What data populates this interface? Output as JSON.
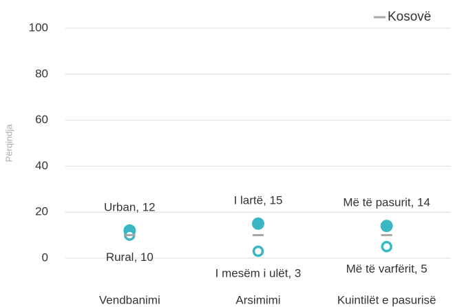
{
  "chart_data": {
    "type": "dot",
    "y_label": "Përqindja",
    "categories": [
      "Vendbanimi",
      "Arsimimi",
      "Kuintilët e pasurisë"
    ],
    "series": [
      {
        "color": "#3bb7c3",
        "marker": "filled",
        "values": [
          12,
          15,
          14
        ],
        "value_labels": [
          "Urban, 12",
          "I lartë, 15",
          "Më të pasurit, 14"
        ]
      },
      {
        "color": "#3bb7c3",
        "marker": "open",
        "values": [
          10,
          3,
          5
        ],
        "value_labels": [
          "Rural, 10",
          "I mesëm i ulët, 3",
          "Më të varfërit, 5"
        ]
      },
      {
        "name": "Kosovë",
        "color": "#a6a6a6",
        "marker": "dash",
        "values": [
          10,
          10,
          10
        ]
      }
    ],
    "ylim": [
      0,
      100
    ],
    "yticks": [
      0,
      20,
      40,
      60,
      80,
      100
    ],
    "grid": true,
    "legend": "top-right"
  }
}
